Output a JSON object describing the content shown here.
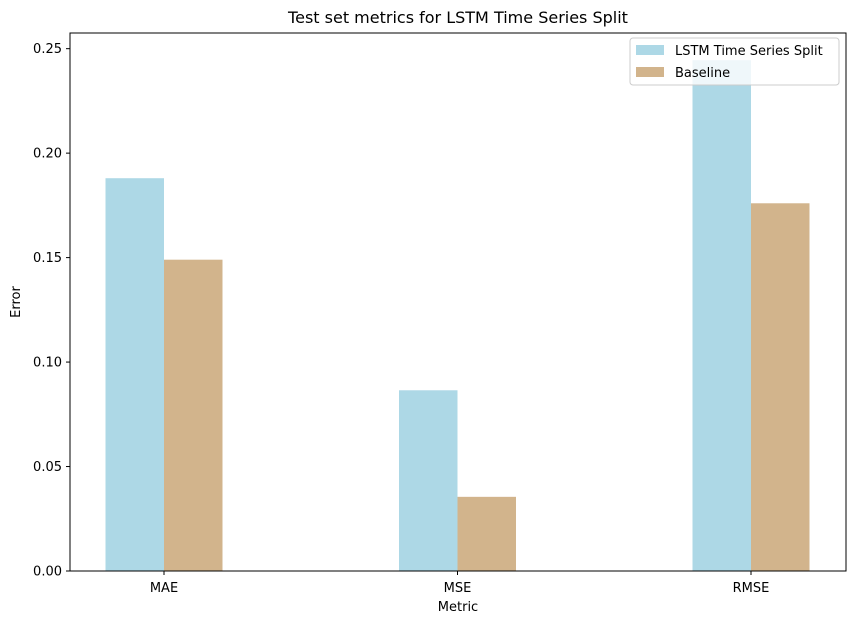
{
  "chart_data": {
    "type": "bar",
    "title": "Test set metrics for LSTM Time Series Split",
    "xlabel": "Metric",
    "ylabel": "Error",
    "categories": [
      "MAE",
      "MSE",
      "RMSE"
    ],
    "series": [
      {
        "name": "LSTM Time Series Split",
        "values": [
          0.188,
          0.0865,
          0.2445
        ],
        "color": "#add8e6"
      },
      {
        "name": "Baseline",
        "values": [
          0.149,
          0.0355,
          0.176
        ],
        "color": "#d2b48c"
      }
    ],
    "ylim": [
      0,
      0.2575
    ],
    "yticks": [
      "0.00",
      "0.05",
      "0.10",
      "0.15",
      "0.20",
      "0.25"
    ],
    "ytick_values": [
      0,
      0.05,
      0.1,
      0.15,
      0.2,
      0.25
    ],
    "grid": false,
    "legend_position": "top-right"
  }
}
